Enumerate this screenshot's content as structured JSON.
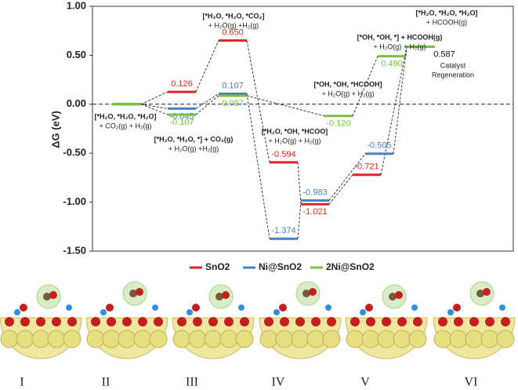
{
  "chart_data": {
    "type": "energy-profile",
    "y_label": "ΔG (eV)",
    "ylim": [
      -1.5,
      1.0
    ],
    "yticks": [
      {
        "value": -1.5,
        "label": "-1.50"
      },
      {
        "value": -1.0,
        "label": "-1.00"
      },
      {
        "value": -0.5,
        "label": "-0.50"
      },
      {
        "value": 0,
        "label": "0.00"
      },
      {
        "value": 0.5,
        "label": "0.50"
      },
      {
        "value": 1.0,
        "label": "1.00"
      }
    ],
    "grid": false,
    "series": [
      {
        "name": "SnO2",
        "color": "#e02424",
        "values": [
          0,
          0.126,
          0.65,
          -0.594,
          -1.021,
          -0.721,
          0.587
        ],
        "value_labels": [
          null,
          "0.126",
          "0.650",
          "-0.594",
          "-1.021",
          "-0.721",
          "0.587"
        ]
      },
      {
        "name": "Ni@SnO2",
        "color": "#4a7fc1",
        "values": [
          0,
          -0.045,
          0.107,
          -1.374,
          -0.983,
          -0.505,
          0.587
        ],
        "value_labels": [
          null,
          "-0.045",
          "0.107",
          "-1.374",
          "-0.983",
          "-0.505",
          null
        ]
      },
      {
        "name": "2Ni@SnO2",
        "color": "#7ac142",
        "values": [
          0,
          -0.107,
          0.087,
          null,
          -0.12,
          0.49,
          0.587
        ],
        "value_labels": [
          null,
          "-0.107",
          "0.087",
          null,
          "-0.120",
          "0.490",
          null
        ]
      }
    ],
    "annotations": [
      [
        "[*H₂O, *H₂O, *H₂O]",
        "+ CO₂(g) + H₂(g)"
      ],
      [
        "[*H₂O, *H₂O, *] + CO₂(g)",
        "+ H₂O(g) +H₂(g)"
      ],
      [
        "[*H₂O, *H₂O, *CO₂]",
        "+ H₂O(g) +H₂(g)"
      ],
      [
        "[*H₂O, *OH, *HCOO]",
        "+ H₂O(g) + H₂(g)"
      ],
      [
        "[*OH, *OH, *HCOOH]",
        "+ H₂O(g) + H₂(g)"
      ],
      [
        "[*OH, *OH, *] + HCOOH(g)",
        "+ H₂O(g) + H₂(g)"
      ],
      [
        "[*H₂O, *H₂O, *H₂O]",
        "+ HCOOH(g)"
      ],
      [
        "Catalyst",
        "Regeneration"
      ]
    ],
    "structures": [
      "I",
      "II",
      "III",
      "IV",
      "V",
      "VI"
    ]
  }
}
